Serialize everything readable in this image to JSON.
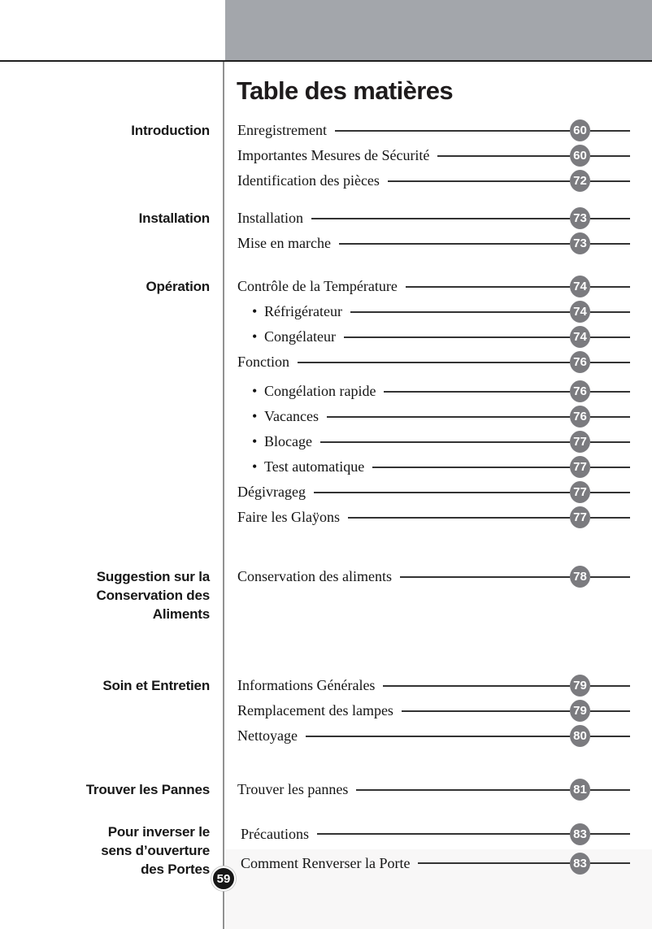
{
  "page": {
    "title": "Table des matières",
    "page_number": "59"
  },
  "bullet_char": "•",
  "colors": {
    "header_bar": "#a3a6ab",
    "top_rule": "#1f1f1f",
    "column_divider": "#919191",
    "leader_line": "#333333",
    "entry_badge_bg": "#7b7b7f",
    "entry_badge_text": "#ffffff",
    "page_badge_bg": "#171717",
    "page_badge_text": "#ffffff"
  },
  "sections": [
    {
      "label_lines": [
        "Introduction"
      ],
      "entries": [
        {
          "text": "Enregistrement",
          "page": "60",
          "bullet": false
        },
        {
          "text": "Importantes Mesures de Sécurité",
          "page": "60",
          "bullet": false
        },
        {
          "text": "Identification des pièces",
          "page": "72",
          "bullet": false
        }
      ]
    },
    {
      "label_lines": [
        "Installation"
      ],
      "entries": [
        {
          "text": "Installation",
          "page": "73",
          "bullet": false
        },
        {
          "text": "Mise en marche",
          "page": "73",
          "bullet": false
        }
      ]
    },
    {
      "label_lines": [
        "Opération"
      ],
      "entries": [
        {
          "text": "Contrôle de la Température",
          "page": "74",
          "bullet": false
        },
        {
          "text": "Réfrigérateur",
          "page": "74",
          "bullet": true
        },
        {
          "text": "Congélateur",
          "page": "74",
          "bullet": true
        },
        {
          "text": "Fonction",
          "page": "76",
          "bullet": false
        },
        {
          "text": "Congélation rapide",
          "page": "76",
          "bullet": true
        },
        {
          "text": "Vacances",
          "page": "76",
          "bullet": true
        },
        {
          "text": "Blocage",
          "page": "77",
          "bullet": true
        },
        {
          "text": "Test automatique",
          "page": "77",
          "bullet": true
        },
        {
          "text": "Dégivrageg",
          "page": "77",
          "bullet": false
        },
        {
          "text": "Faire les Glaÿons",
          "page": "77",
          "bullet": false
        }
      ]
    },
    {
      "label_lines": [
        "Suggestion sur la",
        "Conservation des",
        "Aliments"
      ],
      "entries": [
        {
          "text": "Conservation des aliments",
          "page": "78",
          "bullet": false
        }
      ]
    },
    {
      "label_lines": [
        "Soin et Entretien"
      ],
      "entries": [
        {
          "text": "Informations Générales",
          "page": "79",
          "bullet": false
        },
        {
          "text": "Remplacement des lampes",
          "page": "79",
          "bullet": false
        },
        {
          "text": "Nettoyage",
          "page": "80",
          "bullet": false
        }
      ]
    },
    {
      "label_lines": [
        "Trouver les Pannes"
      ],
      "entries": [
        {
          "text": "Trouver les pannes",
          "page": "81",
          "bullet": false
        }
      ]
    },
    {
      "label_lines": [
        "Pour inverser le",
        "sens d’ouverture",
        "des Portes"
      ],
      "entries": [
        {
          "text": "Précautions",
          "page": "83",
          "bullet": false
        },
        {
          "text": "Comment Renverser la Porte",
          "page": "83",
          "bullet": false
        }
      ]
    }
  ]
}
